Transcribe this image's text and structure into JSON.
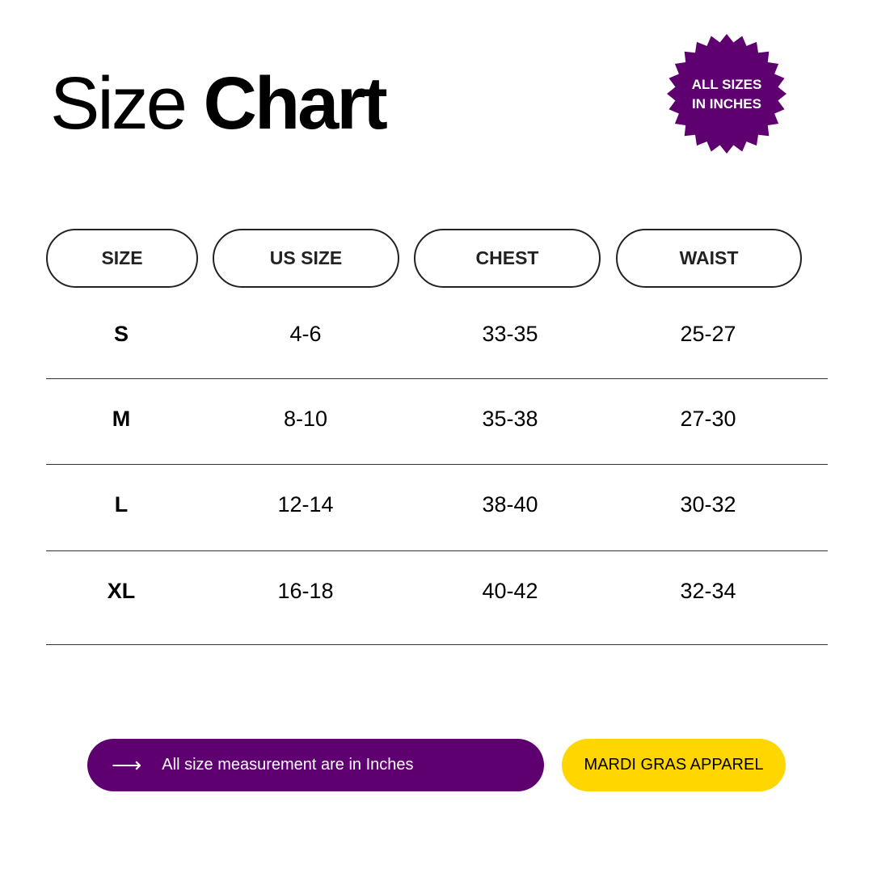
{
  "title": {
    "light": "Size",
    "bold": "Chart"
  },
  "badge": {
    "line1": "ALL SIZES",
    "line2": "IN INCHES",
    "color": "#5f0070"
  },
  "table": {
    "headers": [
      "SIZE",
      "US SIZE",
      "CHEST",
      "WAIST"
    ],
    "rows": [
      [
        "S",
        "4-6",
        "33-35",
        "25-27"
      ],
      [
        "M",
        "8-10",
        "35-38",
        "27-30"
      ],
      [
        "L",
        "12-14",
        "38-40",
        "30-32"
      ],
      [
        "XL",
        "16-18",
        "40-42",
        "32-34"
      ]
    ]
  },
  "footer": {
    "note_icon": "arrow-right-icon",
    "arrow": "⟶",
    "note": "All size measurement are in Inches",
    "note_color": "#5f0070",
    "brand": "MARDI GRAS APPAREL",
    "brand_color": "#ffd600"
  }
}
